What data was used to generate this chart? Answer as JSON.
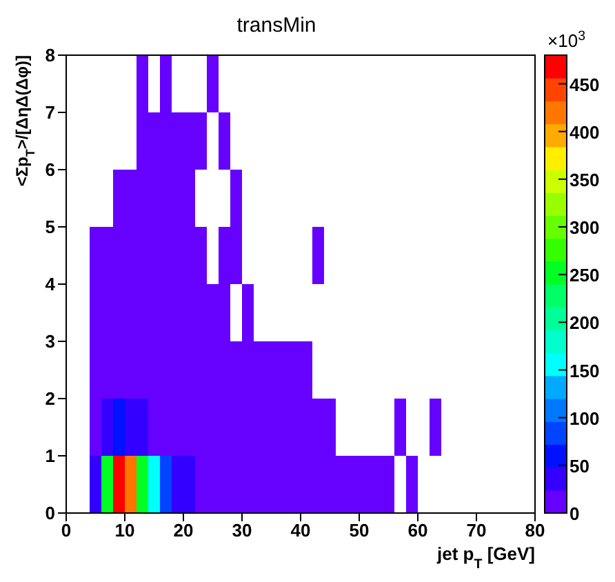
{
  "chart_data": {
    "type": "heatmap",
    "title": "transMin",
    "xlabel": "jet p$_{T}$ [GeV]",
    "ylabel": "<Σp$_{T}$>/[ΔηΔ(Δφ)]",
    "clabel": "×10$^{3}$",
    "x": [
      5,
      7,
      9,
      11,
      13,
      15,
      17,
      19,
      21,
      23,
      25,
      27,
      29,
      31,
      33,
      35,
      37,
      39,
      41,
      43,
      45,
      47,
      49,
      51,
      53,
      55,
      57,
      59,
      61,
      63
    ],
    "xlim": [
      0,
      80
    ],
    "xticks": [
      0,
      10,
      20,
      30,
      40,
      50,
      60,
      70,
      80
    ],
    "ylim": [
      0,
      8
    ],
    "yticks": [
      0,
      1,
      2,
      3,
      4,
      5,
      6,
      7,
      8
    ],
    "clim": [
      0,
      480
    ],
    "cticks": [
      0,
      50,
      100,
      150,
      200,
      250,
      300,
      350,
      400,
      450
    ],
    "cells": [
      [
        null,
        null,
        null,
        null,
        10,
        null,
        10,
        null,
        null,
        null,
        10,
        null,
        null,
        null,
        null,
        null,
        null,
        null,
        null,
        null,
        null,
        null,
        null,
        null,
        null,
        null,
        null,
        null,
        null,
        null
      ],
      [
        null,
        null,
        null,
        null,
        10,
        10,
        10,
        10,
        10,
        10,
        null,
        10,
        null,
        null,
        null,
        null,
        null,
        null,
        null,
        null,
        null,
        null,
        null,
        null,
        null,
        null,
        null,
        null,
        null,
        null
      ],
      [
        null,
        null,
        10,
        10,
        10,
        10,
        10,
        10,
        10,
        null,
        null,
        null,
        10,
        null,
        null,
        null,
        null,
        null,
        null,
        null,
        null,
        null,
        null,
        null,
        null,
        null,
        null,
        null,
        null,
        null
      ],
      [
        10,
        10,
        10,
        10,
        10,
        10,
        10,
        10,
        10,
        10,
        null,
        10,
        10,
        null,
        null,
        null,
        null,
        null,
        null,
        10,
        null,
        null,
        null,
        null,
        null,
        null,
        null,
        null,
        null,
        null
      ],
      [
        10,
        10,
        10,
        10,
        10,
        10,
        10,
        10,
        10,
        10,
        10,
        10,
        null,
        10,
        null,
        null,
        null,
        null,
        null,
        null,
        null,
        null,
        null,
        null,
        null,
        null,
        null,
        null,
        null,
        null
      ],
      [
        10,
        10,
        10,
        10,
        10,
        10,
        10,
        10,
        10,
        10,
        10,
        10,
        10,
        10,
        10,
        10,
        10,
        10,
        10,
        null,
        null,
        null,
        null,
        null,
        null,
        null,
        null,
        null,
        null,
        null
      ],
      [
        10,
        35,
        60,
        35,
        35,
        10,
        10,
        10,
        10,
        10,
        10,
        10,
        10,
        10,
        10,
        10,
        10,
        10,
        10,
        10,
        10,
        null,
        null,
        null,
        null,
        null,
        10,
        null,
        null,
        10
      ],
      [
        35,
        250,
        465,
        420,
        250,
        155,
        85,
        35,
        35,
        10,
        10,
        10,
        10,
        10,
        10,
        10,
        10,
        10,
        10,
        10,
        10,
        10,
        10,
        10,
        10,
        10,
        null,
        10,
        null,
        null
      ]
    ]
  }
}
